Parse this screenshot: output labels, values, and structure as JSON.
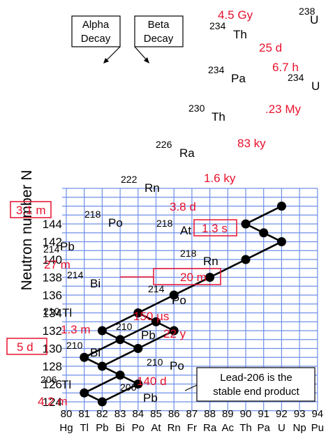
{
  "y_axis_label": "Neutron number N",
  "y_ticks": [
    "124",
    "126",
    "128",
    "130",
    "132",
    "134",
    "136",
    "138",
    "140",
    "142",
    "144"
  ],
  "x_ticks_z": [
    "80",
    "81",
    "82",
    "83",
    "84",
    "85",
    "86",
    "87",
    "88",
    "89",
    "90",
    "91",
    "92",
    "93",
    "94"
  ],
  "x_ticks_elements": [
    "Hg",
    "Tl",
    "Pb",
    "Bi",
    "Po",
    "At",
    "Rn",
    "Fr",
    "Ra",
    "Ac",
    "Th",
    "Pa",
    "U",
    "Np",
    "Pu"
  ],
  "callouts": {
    "alpha": [
      "Alpha",
      "Decay"
    ],
    "beta": [
      "Beta",
      "Decay"
    ],
    "end": [
      "Lead-206 is the",
      "stable end product"
    ]
  },
  "nuclides": [
    {
      "mass": "238",
      "symbol": "U",
      "Z": 92,
      "N": 146
    },
    {
      "mass": "234",
      "symbol": "Th",
      "Z": 90,
      "N": 144
    },
    {
      "mass": "234",
      "symbol": "Pa",
      "Z": 91,
      "N": 143
    },
    {
      "mass": "234",
      "symbol": "U",
      "Z": 92,
      "N": 142
    },
    {
      "mass": "230",
      "symbol": "Th",
      "Z": 90,
      "N": 140
    },
    {
      "mass": "226",
      "symbol": "Ra",
      "Z": 88,
      "N": 138
    },
    {
      "mass": "222",
      "symbol": "Rn",
      "Z": 86,
      "N": 136
    },
    {
      "mass": "218",
      "symbol": "Po",
      "Z": 84,
      "N": 134
    },
    {
      "mass": "218",
      "symbol": "At",
      "Z": 85,
      "N": 133
    },
    {
      "mass": "214",
      "symbol": "Pb",
      "Z": 82,
      "N": 132
    },
    {
      "mass": "218",
      "symbol": "Rn",
      "Z": 86,
      "N": 132
    },
    {
      "mass": "214",
      "symbol": "Bi",
      "Z": 83,
      "N": 131
    },
    {
      "mass": "214",
      "symbol": "Po",
      "Z": 84,
      "N": 130
    },
    {
      "mass": "210",
      "symbol": "Tl",
      "Z": 81,
      "N": 129
    },
    {
      "mass": "210",
      "symbol": "Pb",
      "Z": 82,
      "N": 128
    },
    {
      "mass": "210",
      "symbol": "Bi",
      "Z": 83,
      "N": 127
    },
    {
      "mass": "210",
      "symbol": "Po",
      "Z": 84,
      "N": 126
    },
    {
      "mass": "206",
      "symbol": "Tl",
      "Z": 81,
      "N": 125
    },
    {
      "mass": "206",
      "symbol": "Pb",
      "Z": 82,
      "N": 124
    }
  ],
  "decays": [
    [
      92,
      146,
      90,
      144
    ],
    [
      90,
      144,
      91,
      143
    ],
    [
      91,
      143,
      92,
      142
    ],
    [
      92,
      142,
      90,
      140
    ],
    [
      90,
      140,
      88,
      138
    ],
    [
      88,
      138,
      86,
      136
    ],
    [
      86,
      136,
      84,
      134
    ],
    [
      84,
      134,
      82,
      132
    ],
    [
      84,
      134,
      85,
      133
    ],
    [
      82,
      132,
      83,
      131
    ],
    [
      85,
      133,
      83,
      131
    ],
    [
      85,
      133,
      86,
      132
    ],
    [
      86,
      132,
      84,
      130
    ],
    [
      83,
      131,
      84,
      130
    ],
    [
      83,
      131,
      81,
      129
    ],
    [
      84,
      130,
      82,
      128
    ],
    [
      81,
      129,
      82,
      128
    ],
    [
      82,
      128,
      83,
      127
    ],
    [
      83,
      127,
      84,
      126
    ],
    [
      83,
      127,
      81,
      125
    ],
    [
      84,
      126,
      82,
      124
    ],
    [
      81,
      125,
      82,
      124
    ]
  ],
  "half_lives": [
    "4.5 Gy",
    "25 d",
    "6.7 h",
    ".23 My",
    "83 ky",
    "1.6 ky",
    "3.8 d",
    "3.1 m",
    "1.3 s",
    "27 m",
    "20 m",
    "150 µs",
    "1.3 m",
    "22 y",
    "5 d",
    "140 d",
    "4.2 m"
  ],
  "colors": {
    "grid": "#6f8fe8",
    "half_life": "#e8112d",
    "line": "#000000",
    "text": "#000000",
    "box_border": "#e8112d"
  }
}
